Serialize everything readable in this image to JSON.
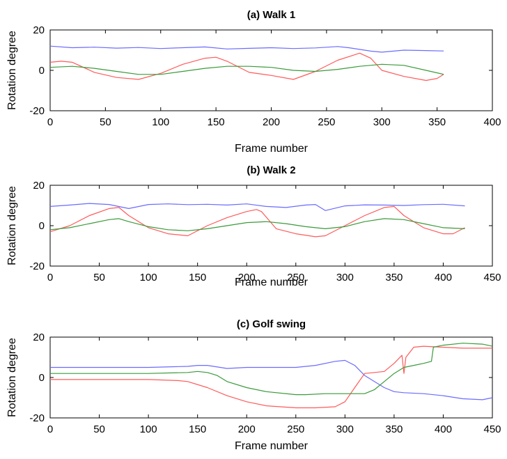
{
  "chart_data": [
    {
      "type": "line",
      "title": "(a) Walk 1",
      "xlabel": "Frame number",
      "ylabel": "Rotation degree",
      "xlim": [
        0,
        400
      ],
      "ylim": [
        -20,
        20
      ],
      "xticks": [
        0,
        50,
        100,
        150,
        200,
        250,
        300,
        350,
        400
      ],
      "yticks": [
        -20,
        0,
        20
      ],
      "grid": false,
      "series": [
        {
          "color": "#6b6bff",
          "x": [
            0,
            20,
            40,
            60,
            80,
            100,
            120,
            140,
            160,
            180,
            200,
            220,
            240,
            260,
            270,
            290,
            300,
            320,
            340,
            356
          ],
          "y": [
            12,
            11.2,
            11.5,
            11,
            11.3,
            10.8,
            11.2,
            11.6,
            10.6,
            10.9,
            11.2,
            10.8,
            11.1,
            11.8,
            11.2,
            9.5,
            9,
            10,
            9.8,
            9.6
          ]
        },
        {
          "color": "#ff5a5a",
          "x": [
            0,
            10,
            20,
            40,
            60,
            80,
            100,
            120,
            140,
            150,
            160,
            180,
            200,
            220,
            240,
            260,
            280,
            290,
            300,
            320,
            340,
            350,
            356
          ],
          "y": [
            4,
            4.5,
            4,
            -1,
            -3.5,
            -4.5,
            -1.5,
            3,
            6,
            6.5,
            4.5,
            -1,
            -2.5,
            -4.5,
            -0.5,
            5,
            8.5,
            6,
            0,
            -3,
            -5,
            -4,
            -2
          ]
        },
        {
          "color": "#3a9a3a",
          "x": [
            0,
            20,
            40,
            60,
            80,
            100,
            120,
            140,
            160,
            180,
            200,
            220,
            240,
            260,
            280,
            300,
            320,
            340,
            356
          ],
          "y": [
            1.5,
            2,
            1,
            -0.5,
            -2,
            -2,
            -0.5,
            1,
            2,
            2,
            1.5,
            0,
            -0.5,
            0.5,
            2,
            3,
            2.5,
            0,
            -2
          ]
        }
      ]
    },
    {
      "type": "line",
      "title": "(b) Walk 2",
      "xlabel": "Frame number",
      "ylabel": "Rotation degree",
      "xlim": [
        0,
        450
      ],
      "ylim": [
        -20,
        20
      ],
      "xticks": [
        0,
        50,
        100,
        150,
        200,
        250,
        300,
        350,
        400,
        450
      ],
      "yticks": [
        -20,
        0,
        20
      ],
      "grid": false,
      "series": [
        {
          "color": "#6b6bff",
          "x": [
            0,
            20,
            40,
            60,
            80,
            100,
            120,
            140,
            160,
            180,
            200,
            220,
            240,
            260,
            270,
            280,
            300,
            320,
            340,
            360,
            380,
            400,
            422
          ],
          "y": [
            9.5,
            10.2,
            11,
            10.5,
            8.5,
            10.5,
            10.8,
            10.4,
            10.6,
            10.2,
            10.8,
            9.5,
            9,
            10.2,
            10.5,
            7.5,
            9.8,
            10.3,
            10.2,
            10,
            10.4,
            10.6,
            9.8
          ]
        },
        {
          "color": "#ff5a5a",
          "x": [
            0,
            20,
            40,
            60,
            70,
            80,
            100,
            120,
            140,
            160,
            180,
            200,
            210,
            215,
            230,
            250,
            270,
            280,
            300,
            320,
            340,
            350,
            360,
            380,
            400,
            410,
            422
          ],
          "y": [
            -3,
            0,
            5,
            8.5,
            9,
            5,
            -1,
            -4,
            -5,
            0,
            4,
            7,
            8,
            7,
            -1.5,
            -4,
            -5.5,
            -5,
            0,
            5,
            9,
            9.5,
            5,
            -1,
            -4,
            -4,
            -1
          ]
        },
        {
          "color": "#3a9a3a",
          "x": [
            0,
            20,
            40,
            60,
            70,
            80,
            100,
            120,
            140,
            160,
            180,
            200,
            220,
            240,
            260,
            280,
            300,
            320,
            340,
            360,
            380,
            400,
            422
          ],
          "y": [
            -2,
            -1,
            1,
            3,
            3.5,
            2,
            -0.5,
            -2,
            -2.5,
            -1.5,
            0,
            1.5,
            2,
            1,
            -0.5,
            -1.5,
            -0.5,
            2,
            3.5,
            3,
            1,
            -1,
            -1.5
          ]
        }
      ]
    },
    {
      "type": "line",
      "title": "(c) Golf swing",
      "xlabel": "Frame number",
      "ylabel": "Rotation degree",
      "xlim": [
        0,
        450
      ],
      "ylim": [
        -20,
        20
      ],
      "xticks": [
        0,
        50,
        100,
        150,
        200,
        250,
        300,
        350,
        400,
        450
      ],
      "yticks": [
        -20,
        0,
        20
      ],
      "grid": false,
      "series": [
        {
          "color": "#6b6bff",
          "x": [
            0,
            50,
            100,
            140,
            150,
            160,
            180,
            200,
            250,
            270,
            290,
            300,
            310,
            320,
            340,
            350,
            360,
            380,
            400,
            420,
            440,
            450
          ],
          "y": [
            5,
            5,
            5,
            5.5,
            6,
            6,
            4.5,
            5,
            5,
            6,
            8,
            8.5,
            6,
            1,
            -5,
            -7,
            -7.5,
            -8,
            -9,
            -10.5,
            -11,
            -10
          ]
        },
        {
          "color": "#ff5a5a",
          "x": [
            0,
            50,
            100,
            130,
            140,
            160,
            180,
            200,
            220,
            250,
            270,
            290,
            300,
            310,
            320,
            330,
            340,
            350,
            358,
            360,
            362,
            370,
            380,
            400,
            420,
            440,
            450
          ],
          "y": [
            -1,
            -1,
            -1,
            -1.5,
            -2,
            -5,
            -9,
            -12,
            -14,
            -15,
            -15,
            -14.5,
            -12,
            -5,
            2,
            2.5,
            3,
            7,
            11,
            2,
            10,
            15,
            15.5,
            15,
            14.5,
            14.5,
            14.5
          ]
        },
        {
          "color": "#3a9a3a",
          "x": [
            0,
            50,
            100,
            140,
            150,
            160,
            170,
            180,
            200,
            220,
            250,
            260,
            280,
            300,
            320,
            330,
            340,
            350,
            360,
            370,
            380,
            388,
            390,
            400,
            420,
            440,
            450
          ],
          "y": [
            2,
            2,
            2,
            2.5,
            3,
            2.5,
            1,
            -2,
            -5,
            -7,
            -8.5,
            -8.5,
            -8,
            -8,
            -8,
            -6,
            -2,
            2,
            5,
            6,
            7,
            8,
            15,
            16,
            17,
            16.5,
            15.5
          ]
        }
      ]
    }
  ]
}
